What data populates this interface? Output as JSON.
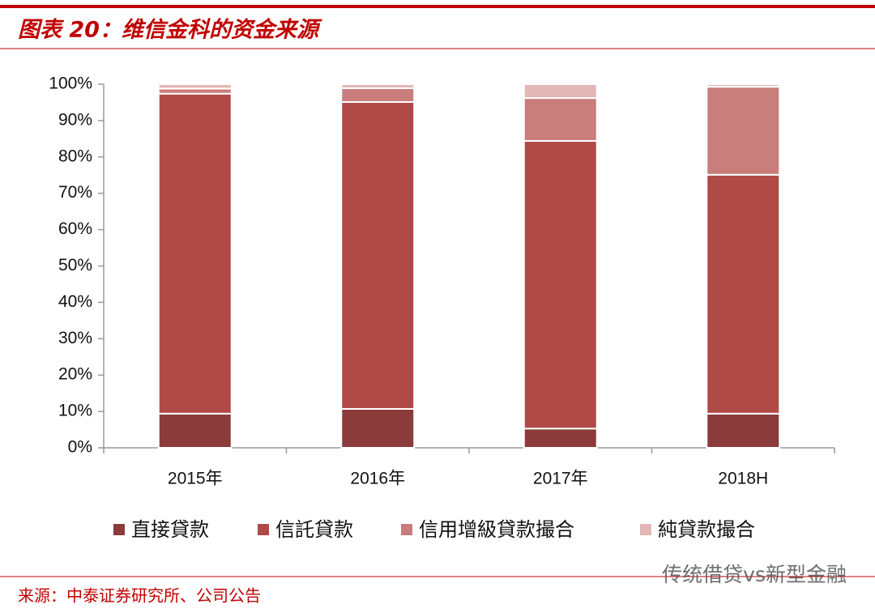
{
  "chart_data": {
    "type": "stacked_bar",
    "title": "图表 20：维信金科的资金来源",
    "source": "来源：中泰证券研究所、公司公告",
    "watermark": "传统借贷vs新型金融",
    "categories": [
      "2015年",
      "2016年",
      "2017年",
      "2018H"
    ],
    "series": [
      {
        "name": "直接貸款",
        "color": "#8c3b3b",
        "values": [
          9.4,
          10.7,
          5.3,
          9.4
        ]
      },
      {
        "name": "信託貸款",
        "color": "#b04a47",
        "values": [
          88.0,
          84.4,
          79.1,
          65.7
        ]
      },
      {
        "name": "信用增級貸款撮合",
        "color": "#c97e7c",
        "values": [
          1.4,
          3.8,
          11.8,
          24.2
        ]
      },
      {
        "name": "純貸款撮合",
        "color": "#e2b7b6",
        "values": [
          1.2,
          1.1,
          3.8,
          0.7
        ]
      }
    ],
    "ylim": [
      0,
      100
    ],
    "yticks": [
      {
        "value": 0,
        "label": "0%"
      },
      {
        "value": 10,
        "label": "10%"
      },
      {
        "value": 20,
        "label": "20%"
      },
      {
        "value": 30,
        "label": "30%"
      },
      {
        "value": 40,
        "label": "40%"
      },
      {
        "value": 50,
        "label": "50%"
      },
      {
        "value": 60,
        "label": "60%"
      },
      {
        "value": 70,
        "label": "70%"
      },
      {
        "value": 80,
        "label": "80%"
      },
      {
        "value": 90,
        "label": "90%"
      },
      {
        "value": 100,
        "label": "100%"
      }
    ]
  }
}
